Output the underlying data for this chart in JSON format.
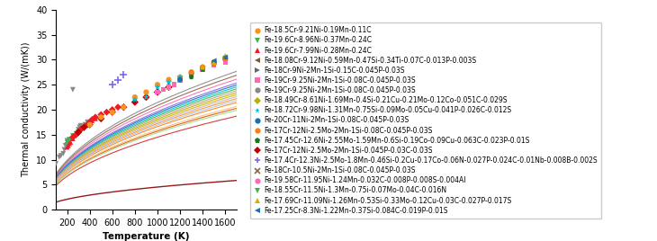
{
  "xlabel": "Temperature (K)",
  "ylabel": "Thermal conductivity (W/(mK))",
  "xlim": [
    100,
    1700
  ],
  "ylim": [
    0,
    40
  ],
  "xticks": [
    200,
    400,
    600,
    800,
    1000,
    1200,
    1400,
    1600
  ],
  "yticks": [
    0,
    5,
    10,
    15,
    20,
    25,
    30,
    35,
    40
  ],
  "legend_entries": [
    {
      "label": "Fe-18.5Cr-9.21Ni-0.19Mn-0.11C",
      "color": "#f7931e",
      "marker": "o"
    },
    {
      "label": "Fe-19.6Cr-8.96Ni-0.37Mn-0.24C",
      "color": "#39b54a",
      "marker": "v"
    },
    {
      "label": "Fe-19.6Cr-7.99Ni-0.28Mn-0.24C",
      "color": "#ed1c24",
      "marker": "^"
    },
    {
      "label": "Fe-18.08Cr-9.12Ni-0.59Mn-0.47Si-0.34Ti-0.07C-0.013P-0.003S",
      "color": "#7b5c3a",
      "marker": "<"
    },
    {
      "label": "Fe-18Cr-9Ni-2Mn-1Si-0.15C-0.045P-0.03S",
      "color": "#666666",
      "marker": ">"
    },
    {
      "label": "Fe-19Cr-9.25Ni-2Mn-1Si-0.08C-0.045P-0.03S",
      "color": "#ff69b4",
      "marker": "s"
    },
    {
      "label": "Fe-19Cr-9.25Ni-2Mn-1Si-0.08C-0.045P-0.03S",
      "color": "#888888",
      "marker": "o"
    },
    {
      "label": "Fe-18.49Cr-8.61Ni-1.69Mn-0.4Si-0.21Cu-0.21Mo-0.12Co-0.051C-0.029S",
      "color": "#b5b200",
      "marker": "D"
    },
    {
      "label": "Fe-18.72Cr-9.98Ni-1.31Mn-0.75Si-0.09Mo-0.05Cu-0.041P-0.026C-0.012S",
      "color": "#00bcd4",
      "marker": "*"
    },
    {
      "label": "Fe-20Cr-11Ni-2Mn-1Si-0.08C-0.045P-0.03S",
      "color": "#1a6faf",
      "marker": "o"
    },
    {
      "label": "Fe-17Cr-12Ni-2.5Mo-2Mn-1Si-0.08C-0.045P-0.03S",
      "color": "#ff7f0e",
      "marker": "o"
    },
    {
      "label": "Fe-17.45Cr-12.6Ni-2.55Mo-1.59Mn-0.6Si-0.19Co-0.09Cu-0.063C-0.023P-0.01S",
      "color": "#1a7a1a",
      "marker": "p"
    },
    {
      "label": "Fe-17Cr-12Ni-2.5Mo-2Mn-1Si-0.045P-0.03C-0.03S",
      "color": "#c00000",
      "marker": "D"
    },
    {
      "label": "Fe-17.4Cr-12.3Ni-2.5Mo-1.8Mn-0.46Si-0.2Cu-0.17Co-0.06N-0.027P-0.024C-0.01Nb-0.008B-0.002S",
      "color": "#7b68ee",
      "marker": "+"
    },
    {
      "label": "Fe-18Cr-10.5Ni-2Mn-1Si-0.08C-0.045P-0.03S",
      "color": "#8b6347",
      "marker": "x"
    },
    {
      "label": "Fe-19.58Cr-11.95Ni-1.24Mn-0.032C-0.008P-0.008S-0.004Al",
      "color": "#ff69b4",
      "marker": "o"
    },
    {
      "label": "Fe-18.55Cr-11.5Ni-1.3Mn-0.75i-0.07Mo-0.04C-0.016N",
      "color": "#39b54a",
      "marker": "v"
    },
    {
      "label": "Fe-17.69Cr-11.09Ni-1.26Mn-0.53Si-0.33Mo-0.12Cu-0.03C-0.027P-0.017S",
      "color": "#d4b000",
      "marker": "^"
    },
    {
      "label": "Fe-17.25Cr-8.3Ni-1.22Mn-0.37Si-0.084C-0.019P-0.01S",
      "color": "#1a6faf",
      "marker": "<"
    }
  ],
  "curves": [
    {
      "c": 1.5,
      "T0": 50,
      "color": "#8B0000",
      "lw": 1.0
    },
    {
      "c": 4.8,
      "T0": 50,
      "color": "#d62728",
      "lw": 0.8
    },
    {
      "c": 5.2,
      "T0": 50,
      "color": "#e05000",
      "lw": 0.8
    },
    {
      "c": 5.5,
      "T0": 50,
      "color": "#ff7f0e",
      "lw": 0.8
    },
    {
      "c": 5.7,
      "T0": 50,
      "color": "#f7931e",
      "lw": 0.8
    },
    {
      "c": 5.9,
      "T0": 50,
      "color": "#d4b000",
      "lw": 0.8
    },
    {
      "c": 6.0,
      "T0": 50,
      "color": "#b5b200",
      "lw": 0.8
    },
    {
      "c": 6.2,
      "T0": 50,
      "color": "#39b54a",
      "lw": 0.8
    },
    {
      "c": 6.3,
      "T0": 50,
      "color": "#00bcd4",
      "lw": 0.8
    },
    {
      "c": 6.4,
      "T0": 50,
      "color": "#1a6faf",
      "lw": 0.8
    },
    {
      "c": 6.5,
      "T0": 50,
      "color": "#7b68ee",
      "lw": 0.8
    },
    {
      "c": 6.7,
      "T0": 50,
      "color": "#ff69b4",
      "lw": 0.8
    },
    {
      "c": 6.9,
      "T0": 50,
      "color": "#8b6347",
      "lw": 0.8
    },
    {
      "c": 7.1,
      "T0": 50,
      "color": "#888888",
      "lw": 0.8
    },
    {
      "c": 5.8,
      "T0": 50,
      "color": "#c5b0d5",
      "lw": 0.8
    },
    {
      "c": 5.6,
      "T0": 50,
      "color": "#aec7e8",
      "lw": 0.8
    },
    {
      "c": 5.3,
      "T0": 50,
      "color": "#ffbb78",
      "lw": 0.8
    },
    {
      "c": 5.1,
      "T0": 50,
      "color": "#98df8a",
      "lw": 0.8
    },
    {
      "c": 6.1,
      "T0": 50,
      "color": "#c49c94",
      "lw": 0.8
    }
  ],
  "scatter_groups": [
    {
      "x": [
        100,
        130,
        145,
        165,
        175,
        185,
        200,
        200,
        210,
        220,
        250,
        260,
        280,
        300,
        300,
        310,
        320,
        360,
        380
      ],
      "y": [
        9.2,
        10.5,
        10.8,
        11.2,
        12.0,
        12.8,
        13.0,
        13.8,
        13.5,
        14.0,
        24.0,
        14.5,
        15.2,
        15.5,
        16.0,
        16.5,
        16.8,
        17.0,
        17.5
      ],
      "color": "#888888",
      "marker": "v",
      "s": 18
    },
    {
      "x": [
        200,
        210,
        220,
        230,
        250,
        260,
        280,
        300,
        320,
        350,
        380,
        400,
        420,
        450
      ],
      "y": [
        12.5,
        12.8,
        13.2,
        13.5,
        14.2,
        14.8,
        15.2,
        15.8,
        16.2,
        16.8,
        17.2,
        17.5,
        17.8,
        18.2
      ],
      "color": "#ed1c24",
      "marker": "^",
      "s": 16
    },
    {
      "x": [
        200,
        220,
        250,
        300,
        350,
        400
      ],
      "y": [
        13.5,
        14.0,
        14.8,
        15.5,
        16.2,
        17.0
      ],
      "color": "#39b54a",
      "marker": "v",
      "s": 16
    },
    {
      "x": [
        250,
        280,
        300,
        320,
        350,
        380,
        400,
        420,
        450,
        500,
        550,
        600,
        650
      ],
      "y": [
        14.5,
        15.0,
        15.5,
        16.0,
        16.5,
        17.0,
        17.5,
        18.0,
        18.5,
        19.0,
        19.5,
        20.0,
        20.5
      ],
      "color": "#ed1c24",
      "marker": "D",
      "s": 16
    },
    {
      "x": [
        300,
        350,
        400,
        500,
        600,
        700,
        800,
        900,
        1000,
        1100
      ],
      "y": [
        15.5,
        16.5,
        17.0,
        18.2,
        19.5,
        20.5,
        21.5,
        22.5,
        23.5,
        24.5
      ],
      "color": "#c00000",
      "marker": "D",
      "s": 18
    },
    {
      "x": [
        400,
        500,
        600,
        700,
        800,
        900,
        1000,
        1100,
        1200,
        1300,
        1400,
        1500,
        1600
      ],
      "y": [
        17.0,
        18.5,
        19.5,
        20.5,
        22.5,
        23.5,
        25.0,
        26.0,
        26.5,
        27.5,
        28.5,
        29.5,
        30.0
      ],
      "color": "#f7931e",
      "marker": "o",
      "s": 20
    },
    {
      "x": [
        800,
        900,
        1000,
        1100,
        1200,
        1400
      ],
      "y": [
        22.0,
        22.5,
        24.5,
        25.5,
        26.5,
        28.5
      ],
      "color": "#00bcd4",
      "marker": "*",
      "s": 30
    },
    {
      "x": [
        600,
        650,
        700
      ],
      "y": [
        25.0,
        26.0,
        27.0
      ],
      "color": "#7b68ee",
      "marker": "+",
      "s": 40
    },
    {
      "x": [
        1000,
        1050,
        1100,
        1150,
        1200,
        1300,
        1400,
        1500,
        1600
      ],
      "y": [
        23.5,
        24.0,
        24.5,
        25.0,
        25.8,
        27.0,
        28.0,
        29.0,
        29.5
      ],
      "color": "#ff69b4",
      "marker": "s",
      "s": 15
    },
    {
      "x": [
        1200,
        1300,
        1400,
        1500,
        1600
      ],
      "y": [
        26.0,
        27.2,
        28.2,
        29.2,
        30.2
      ],
      "color": "#1a6faf",
      "marker": "o",
      "s": 18
    },
    {
      "x": [
        1300,
        1400,
        1500,
        1600
      ],
      "y": [
        27.5,
        28.5,
        29.2,
        30.2
      ],
      "color": "#ff7f0e",
      "marker": "o",
      "s": 18
    },
    {
      "x": [
        1300,
        1400,
        1500,
        1600
      ],
      "y": [
        26.5,
        28.0,
        29.5,
        30.5
      ],
      "color": "#1a7a1a",
      "marker": "p",
      "s": 18
    },
    {
      "x": [
        1400,
        1500,
        1600
      ],
      "y": [
        28.5,
        29.5,
        30.8
      ],
      "color": "#d4b000",
      "marker": "^",
      "s": 18
    },
    {
      "x": [
        1500,
        1600
      ],
      "y": [
        29.8,
        30.5
      ],
      "color": "#1a6faf",
      "marker": "<",
      "s": 18
    }
  ]
}
